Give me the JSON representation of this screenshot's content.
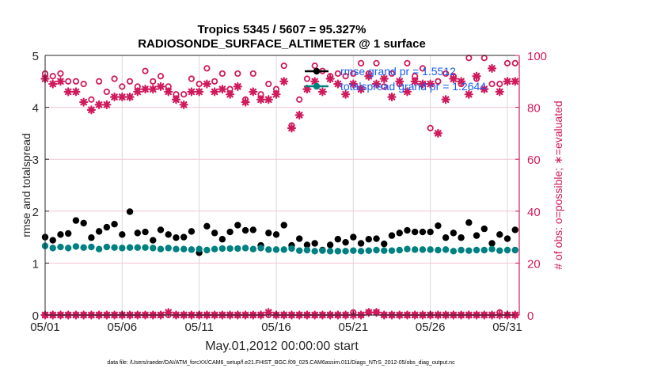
{
  "chart_data": {
    "type": "line",
    "title": "Tropics 5345 / 5607 = 95.327%",
    "subtitle": "RADIOSONDE_SURFACE_ALTIMETER @ 1 surface",
    "xlabel": "May.01,2012 00:00:00 start",
    "ylabel": "rmse and totalspread",
    "ylabel_right": "# of obs: o=possible; ∗=evaluated",
    "footer": "data file: /Users/raeder/DAI/ATM_forcXX/CAM6_setup/f.e21.FHIST_BGC.f09_025.CAM6assim.011/Diags_NTrS_2012-05/obs_diag_output.nc",
    "x_unit": "days since May.01,2012 00:00:00",
    "x_step_days": 0.5,
    "xlim": [
      0,
      30.8
    ],
    "x_ticks": [
      0,
      5,
      10,
      15,
      20,
      25,
      30
    ],
    "x_tick_labels": [
      "05/01",
      "05/06",
      "05/11",
      "05/16",
      "05/21",
      "05/26",
      "05/31"
    ],
    "ylim": [
      0,
      5
    ],
    "y_ticks": [
      0,
      1,
      2,
      3,
      4,
      5
    ],
    "y_tick_labels": [
      "0",
      "1",
      "2",
      "3",
      "4",
      "5"
    ],
    "ylim_right": [
      0,
      100
    ],
    "y_ticks_right": [
      0,
      20,
      40,
      60,
      80,
      100
    ],
    "y_tick_labels_right": [
      "0",
      "20",
      "40",
      "60",
      "80",
      "100"
    ],
    "grid": true,
    "legend_position": "top-right",
    "colors": {
      "rmse": "#000000",
      "totalspread": "#008080",
      "counts": "#d01a5c",
      "legend_text": "#1a5cf0",
      "grid": "#d9d9d9",
      "grid_right": "#f2c4d4"
    },
    "series": [
      {
        "name": "rmse grand pr = 1.5512",
        "axis": "left",
        "marker": "filled-circle",
        "values": [
          1.5,
          1.44,
          1.55,
          1.57,
          1.82,
          1.77,
          1.49,
          1.61,
          1.69,
          1.75,
          1.55,
          1.99,
          1.58,
          1.6,
          1.44,
          1.64,
          1.55,
          1.49,
          1.5,
          1.61,
          1.2,
          1.71,
          1.58,
          1.46,
          1.6,
          1.73,
          1.63,
          1.64,
          1.34,
          1.58,
          1.55,
          1.73,
          1.34,
          1.47,
          1.35,
          1.38,
          1.25,
          1.35,
          1.46,
          1.4,
          1.5,
          1.38,
          1.46,
          1.47,
          1.37,
          1.53,
          1.58,
          1.63,
          1.6,
          1.6,
          1.6,
          1.72,
          1.49,
          1.58,
          1.49,
          1.78,
          1.53,
          1.66,
          1.38,
          1.55,
          1.47,
          1.64
        ]
      },
      {
        "name": "totalspread grand pr = 1.2644",
        "axis": "left",
        "marker": "filled-circle",
        "values": [
          1.33,
          1.29,
          1.31,
          1.29,
          1.32,
          1.3,
          1.31,
          1.27,
          1.31,
          1.3,
          1.29,
          1.3,
          1.3,
          1.3,
          1.29,
          1.27,
          1.29,
          1.27,
          1.27,
          1.26,
          1.27,
          1.25,
          1.27,
          1.28,
          1.28,
          1.28,
          1.29,
          1.27,
          1.29,
          1.26,
          1.26,
          1.26,
          1.28,
          1.24,
          1.25,
          1.23,
          1.24,
          1.23,
          1.23,
          1.23,
          1.24,
          1.23,
          1.24,
          1.25,
          1.24,
          1.24,
          1.25,
          1.27,
          1.26,
          1.26,
          1.26,
          1.25,
          1.26,
          1.23,
          1.25,
          1.24,
          1.25,
          1.25,
          1.27,
          1.24,
          1.25,
          1.25
        ]
      },
      {
        "name": "possible",
        "axis": "right",
        "marker": "open-circle",
        "values": [
          93,
          92,
          93,
          90,
          90,
          89,
          83,
          90,
          86,
          91,
          88,
          90,
          88,
          94,
          90,
          92,
          88,
          85,
          85,
          91,
          89,
          95,
          90,
          93,
          87,
          93,
          83,
          93,
          85,
          89,
          87,
          96,
          73,
          83,
          91,
          96,
          94,
          92,
          93,
          92,
          93,
          97,
          93,
          97,
          88,
          93,
          89,
          97,
          92,
          95,
          72,
          90,
          93,
          92,
          89,
          99,
          91,
          99,
          89,
          89,
          97,
          97
        ]
      },
      {
        "name": "evaluated",
        "axis": "right",
        "marker": "asterisk",
        "values": [
          91,
          89,
          90,
          86,
          86,
          82,
          79,
          81,
          81,
          84,
          84,
          84,
          86,
          87,
          87,
          88,
          86,
          83,
          81,
          86,
          86,
          89,
          86,
          87,
          85,
          88,
          82,
          86,
          83,
          83,
          85,
          90,
          72,
          77,
          87,
          90,
          86,
          91,
          89,
          85,
          89,
          87,
          92,
          89,
          91,
          84,
          90,
          86,
          90,
          89,
          89,
          70,
          83,
          91,
          90,
          85,
          92,
          87,
          95,
          86,
          90,
          90
        ]
      },
      {
        "name": "possible-bottom",
        "axis": "right",
        "marker": "open-circle",
        "values": [
          0,
          0,
          0,
          0,
          0,
          0,
          0,
          0,
          0,
          0,
          0,
          0,
          0,
          0,
          0,
          0,
          0,
          0,
          0,
          0,
          0,
          0,
          0,
          0,
          0,
          0,
          0,
          0,
          0,
          0,
          0,
          0,
          0,
          0,
          0,
          0,
          0,
          0,
          0,
          0,
          1,
          0,
          1,
          1,
          0,
          0,
          0,
          0,
          0,
          0,
          0,
          0,
          0,
          0,
          0,
          0,
          0,
          0,
          0,
          1,
          0,
          0
        ]
      },
      {
        "name": "evaluated-bottom",
        "axis": "right",
        "marker": "asterisk",
        "values": [
          0,
          0,
          0,
          0,
          0,
          0,
          0,
          0,
          0,
          0,
          0,
          0,
          0,
          0,
          0,
          0,
          1,
          0,
          0,
          0,
          0,
          0,
          0,
          0,
          0,
          0,
          0,
          0,
          0,
          1,
          0,
          0,
          0,
          0,
          0,
          0,
          0,
          0,
          0,
          0,
          0,
          0,
          1,
          1,
          0,
          0,
          0,
          0,
          0,
          0,
          0,
          0,
          0,
          0,
          0,
          0,
          0,
          0,
          0,
          0,
          0,
          0
        ]
      }
    ],
    "legend": [
      {
        "label": "rmse grand pr = 1.5512",
        "series": "rmse"
      },
      {
        "label": "totalspread grand pr = 1.2644",
        "series": "totalspread"
      }
    ]
  }
}
